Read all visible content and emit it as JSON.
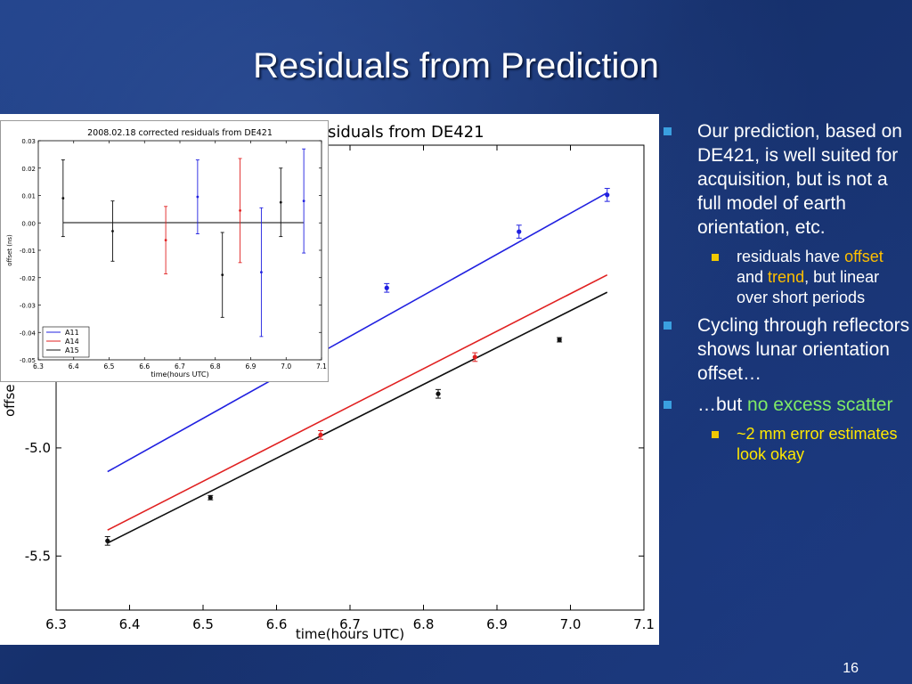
{
  "slide": {
    "title": "Residuals from Prediction",
    "page_number": "16"
  },
  "bullets": [
    {
      "text": "Our prediction, based on DE421, is well suited for acquisition, but is not a full model of earth orientation, etc."
    },
    {
      "pre": "residuals have ",
      "offset": "offset",
      "and": " and ",
      "trend": "trend",
      "post": ", but linear over short periods"
    },
    {
      "text": "Cycling through reflectors shows lunar orientation offset…"
    },
    {
      "pre": "…but ",
      "highlight": "no excess scatter"
    },
    {
      "text": "~2 mm error estimates look okay"
    }
  ],
  "colors": {
    "A11": "#2020e0",
    "A14": "#e02020",
    "A15": "#101010",
    "bullet_l1": "#3aa0e0",
    "bullet_l2": "#f0c800",
    "highlight_green": "#7fea66"
  },
  "chart_data": [
    {
      "id": "main",
      "type": "scatter",
      "title": "siduals from DE421",
      "xlabel": "time(hours UTC)",
      "ylabel": "offse",
      "xlim": [
        6.3,
        7.1
      ],
      "ylim": [
        -5.75,
        -3.6
      ],
      "x_ticks": [
        "6.3",
        "6.4",
        "6.5",
        "6.6",
        "6.7",
        "6.8",
        "6.9",
        "7.0",
        "7.1"
      ],
      "y_ticks": [
        "-5.0",
        "-5.5"
      ],
      "series": [
        {
          "color": "#2020e0",
          "points": [
            [
              6.75,
              -4.26,
              0.02
            ],
            [
              6.93,
              -4.0,
              0.03
            ],
            [
              7.05,
              -3.83,
              0.03
            ]
          ],
          "line": [
            [
              6.37,
              -5.11
            ],
            [
              7.05,
              -3.82
            ]
          ]
        },
        {
          "color": "#e02020",
          "points": [
            [
              6.66,
              -4.94,
              0.02
            ],
            [
              6.87,
              -4.58,
              0.02
            ]
          ],
          "line": [
            [
              6.37,
              -5.38
            ],
            [
              7.05,
              -4.2
            ]
          ]
        },
        {
          "color": "#101010",
          "points": [
            [
              6.37,
              -5.43,
              0.02
            ],
            [
              6.51,
              -5.23,
              0.01
            ],
            [
              6.82,
              -4.75,
              0.02
            ],
            [
              6.985,
              -4.5,
              0.01
            ]
          ],
          "line": [
            [
              6.37,
              -5.44
            ],
            [
              7.05,
              -4.28
            ]
          ]
        }
      ]
    },
    {
      "id": "inset",
      "type": "scatter",
      "title": "2008.02.18 corrected residuals from DE421",
      "xlabel": "time(hours UTC)",
      "ylabel": "offset (ns)",
      "xlim": [
        6.3,
        7.1
      ],
      "ylim": [
        -0.05,
        0.03
      ],
      "x_ticks": [
        "6.3",
        "6.4",
        "6.5",
        "6.6",
        "6.7",
        "6.8",
        "6.9",
        "7.0",
        "7.1"
      ],
      "y_ticks": [
        "0.03",
        "0.02",
        "0.01",
        "0.00",
        "-0.01",
        "-0.02",
        "-0.03",
        "-0.04",
        "-0.05"
      ],
      "legend": [
        "A11",
        "A14",
        "A15"
      ],
      "legend_position": "lower-left",
      "series": [
        {
          "name": "A11",
          "color": "#2020e0",
          "points": [
            [
              6.75,
              0.0095,
              0.0135
            ],
            [
              6.93,
              -0.018,
              0.0235
            ],
            [
              7.05,
              0.008,
              0.019
            ]
          ]
        },
        {
          "name": "A14",
          "color": "#e02020",
          "points": [
            [
              6.66,
              -0.0063,
              0.0123
            ],
            [
              6.87,
              0.0045,
              0.019
            ]
          ]
        },
        {
          "name": "A15",
          "color": "#101010",
          "points": [
            [
              6.37,
              0.009,
              0.014
            ],
            [
              6.51,
              -0.003,
              0.011
            ],
            [
              6.82,
              -0.019,
              0.0155
            ],
            [
              6.985,
              0.0075,
              0.0125
            ]
          ]
        }
      ]
    }
  ]
}
